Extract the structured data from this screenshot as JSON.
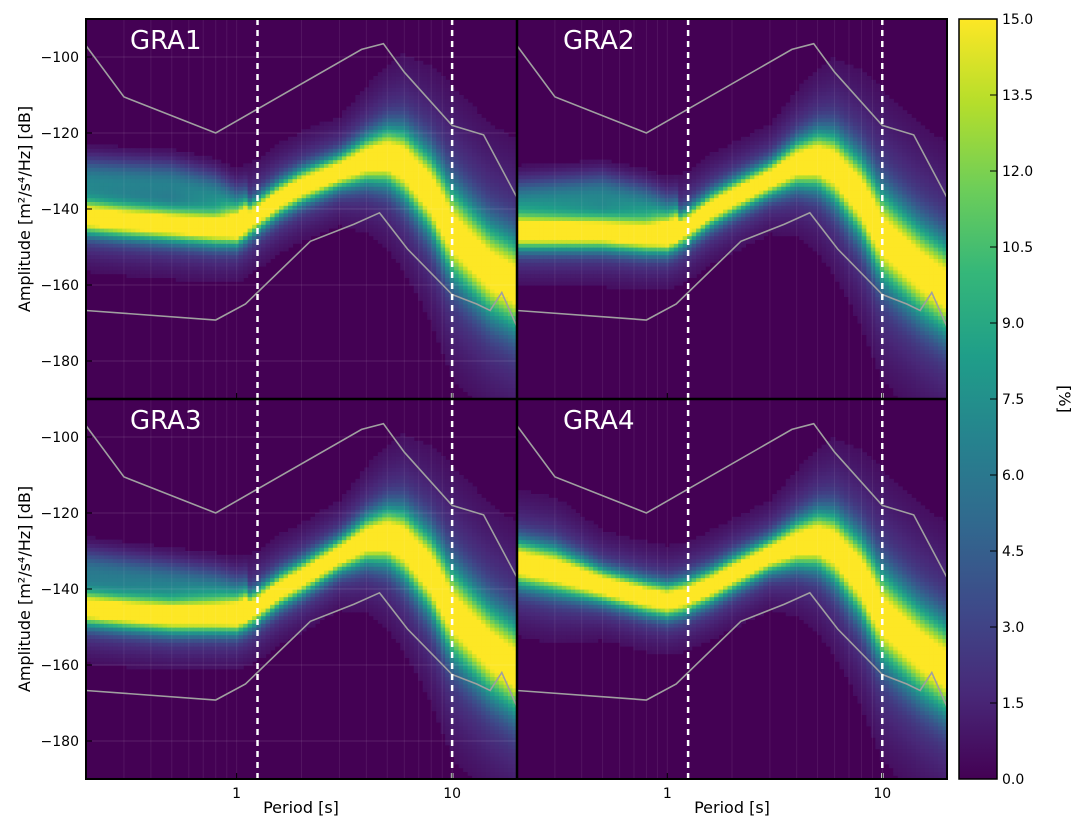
{
  "figure": {
    "colormap": [
      "#440154",
      "#482878",
      "#3e4989",
      "#31688e",
      "#26828e",
      "#1f9e89",
      "#35b779",
      "#6ece58",
      "#b5de2b",
      "#fde725"
    ],
    "curve_color": "#a0a0a0",
    "marker_color": "#ffffff",
    "grid": true
  },
  "chart_data": [
    {
      "type": "heatmap",
      "title": "GRA1",
      "xlabel": "",
      "ylabel": "Amplitude [m²/s⁴/Hz] [dB]",
      "xscale": "log",
      "xlim": [
        0.2,
        20
      ],
      "ylim": [
        -190,
        -90
      ],
      "x_ticks": [
        1,
        10
      ],
      "y_ticks": [
        -100,
        -120,
        -140,
        -160,
        -180
      ],
      "vlines_x": [
        1.25,
        10
      ],
      "mode_curve": {
        "x": [
          0.2,
          0.3,
          0.5,
          0.8,
          1.0,
          1.2,
          1.6,
          2.0,
          3.0,
          4.0,
          5.0,
          6.0,
          8.0,
          10.0,
          15.0,
          20.0
        ],
        "y": [
          -142,
          -143,
          -144,
          -145,
          -145,
          -142,
          -137,
          -134,
          -130,
          -127,
          -126,
          -128,
          -136,
          -146,
          -156,
          -160
        ],
        "spread": [
          3,
          3,
          3,
          3,
          3,
          3,
          3,
          3,
          3,
          4,
          5,
          6,
          7,
          8,
          8,
          8
        ]
      },
      "secondary_lobe": {
        "x": [
          0.2,
          0.5,
          0.8,
          1.0
        ],
        "y": [
          -132,
          -133,
          -136,
          -140
        ],
        "strength": 0.35
      }
    },
    {
      "type": "heatmap",
      "title": "GRA2",
      "xlabel": "",
      "ylabel": "",
      "xscale": "log",
      "xlim": [
        0.2,
        20
      ],
      "ylim": [
        -190,
        -90
      ],
      "x_ticks": [
        1,
        10
      ],
      "y_ticks": [],
      "vlines_x": [
        1.25,
        10
      ],
      "mode_curve": {
        "x": [
          0.2,
          0.3,
          0.5,
          0.8,
          1.0,
          1.2,
          1.6,
          2.0,
          3.0,
          4.0,
          5.0,
          6.0,
          8.0,
          10.0,
          15.0,
          20.0
        ],
        "y": [
          -146,
          -146,
          -146,
          -147,
          -147,
          -145,
          -140,
          -137,
          -132,
          -128,
          -127,
          -129,
          -137,
          -147,
          -156,
          -161
        ],
        "spread": [
          3,
          3,
          3,
          3,
          3,
          3,
          3,
          3,
          3,
          4,
          5,
          6,
          7,
          8,
          8,
          8
        ]
      },
      "secondary_lobe": {
        "x": [
          0.2,
          0.5,
          0.8,
          1.0
        ],
        "y": [
          -138,
          -136,
          -139,
          -142
        ],
        "strength": 0.35
      }
    },
    {
      "type": "heatmap",
      "title": "GRA3",
      "xlabel": "Period [s]",
      "ylabel": "Amplitude [m²/s⁴/Hz] [dB]",
      "xscale": "log",
      "xlim": [
        0.2,
        20
      ],
      "ylim": [
        -190,
        -90
      ],
      "x_ticks": [
        1,
        10
      ],
      "y_ticks": [
        -100,
        -120,
        -140,
        -160,
        -180
      ],
      "vlines_x": [
        1.25,
        10
      ],
      "mode_curve": {
        "x": [
          0.2,
          0.3,
          0.5,
          0.8,
          1.0,
          1.2,
          1.6,
          2.0,
          3.0,
          4.0,
          5.0,
          6.0,
          8.0,
          10.0,
          15.0,
          20.0
        ],
        "y": [
          -145,
          -146,
          -147,
          -147,
          -147,
          -145,
          -140,
          -137,
          -131,
          -127,
          -126,
          -128,
          -136,
          -146,
          -156,
          -161
        ],
        "spread": [
          3,
          3,
          3,
          3,
          3,
          3,
          3,
          3,
          3,
          4,
          5,
          6,
          7,
          8,
          8,
          8
        ]
      },
      "secondary_lobe": {
        "x": [
          0.2,
          0.5,
          0.8,
          1.0
        ],
        "y": [
          -135,
          -138,
          -140,
          -142
        ],
        "strength": 0.3
      }
    },
    {
      "type": "heatmap",
      "title": "GRA4",
      "xlabel": "Period [s]",
      "ylabel": "",
      "xscale": "log",
      "xlim": [
        0.2,
        20
      ],
      "ylim": [
        -190,
        -90
      ],
      "x_ticks": [
        1,
        10
      ],
      "y_ticks": [],
      "vlines_x": [
        1.25,
        10
      ],
      "mode_curve": {
        "x": [
          0.2,
          0.3,
          0.5,
          0.8,
          1.0,
          1.2,
          1.6,
          2.0,
          3.0,
          4.0,
          5.0,
          6.0,
          8.0,
          10.0,
          15.0,
          20.0
        ],
        "y": [
          -133,
          -135,
          -139,
          -142,
          -143,
          -142,
          -139,
          -136,
          -131,
          -128,
          -127,
          -129,
          -137,
          -147,
          -156,
          -161
        ],
        "spread": [
          4,
          4,
          3,
          3,
          3,
          3,
          3,
          3,
          3,
          4,
          5,
          6,
          7,
          8,
          8,
          8
        ]
      },
      "secondary_lobe": {
        "x": [
          0.2,
          0.5,
          0.8,
          1.0
        ],
        "y": [
          -133,
          -135,
          -139,
          -142
        ],
        "strength": 0.0
      }
    },
    {
      "type": "colorbar",
      "label": "[%]",
      "range": [
        0,
        15
      ],
      "ticks": [
        "0.0",
        "1.5",
        "3.0",
        "4.5",
        "6.0",
        "7.5",
        "9.0",
        "10.5",
        "12.0",
        "13.5",
        "15.0"
      ]
    }
  ],
  "nlnm": {
    "x": [
      0.2,
      0.8,
      1.1,
      2.2,
      3.5,
      4.6,
      6.2,
      10,
      13,
      15,
      17,
      20
    ],
    "y": [
      -166.7,
      -169.2,
      -165,
      -148.5,
      -144,
      -141,
      -150.5,
      -162.5,
      -165,
      -166.7,
      -162,
      -171
    ]
  },
  "nhnm": {
    "x": [
      0.2,
      0.3,
      0.8,
      3.8,
      4.8,
      6.0,
      10,
      14,
      20
    ],
    "y": [
      -97,
      -110.5,
      -120,
      -98,
      -96.5,
      -104,
      -118,
      -120.5,
      -137
    ]
  }
}
